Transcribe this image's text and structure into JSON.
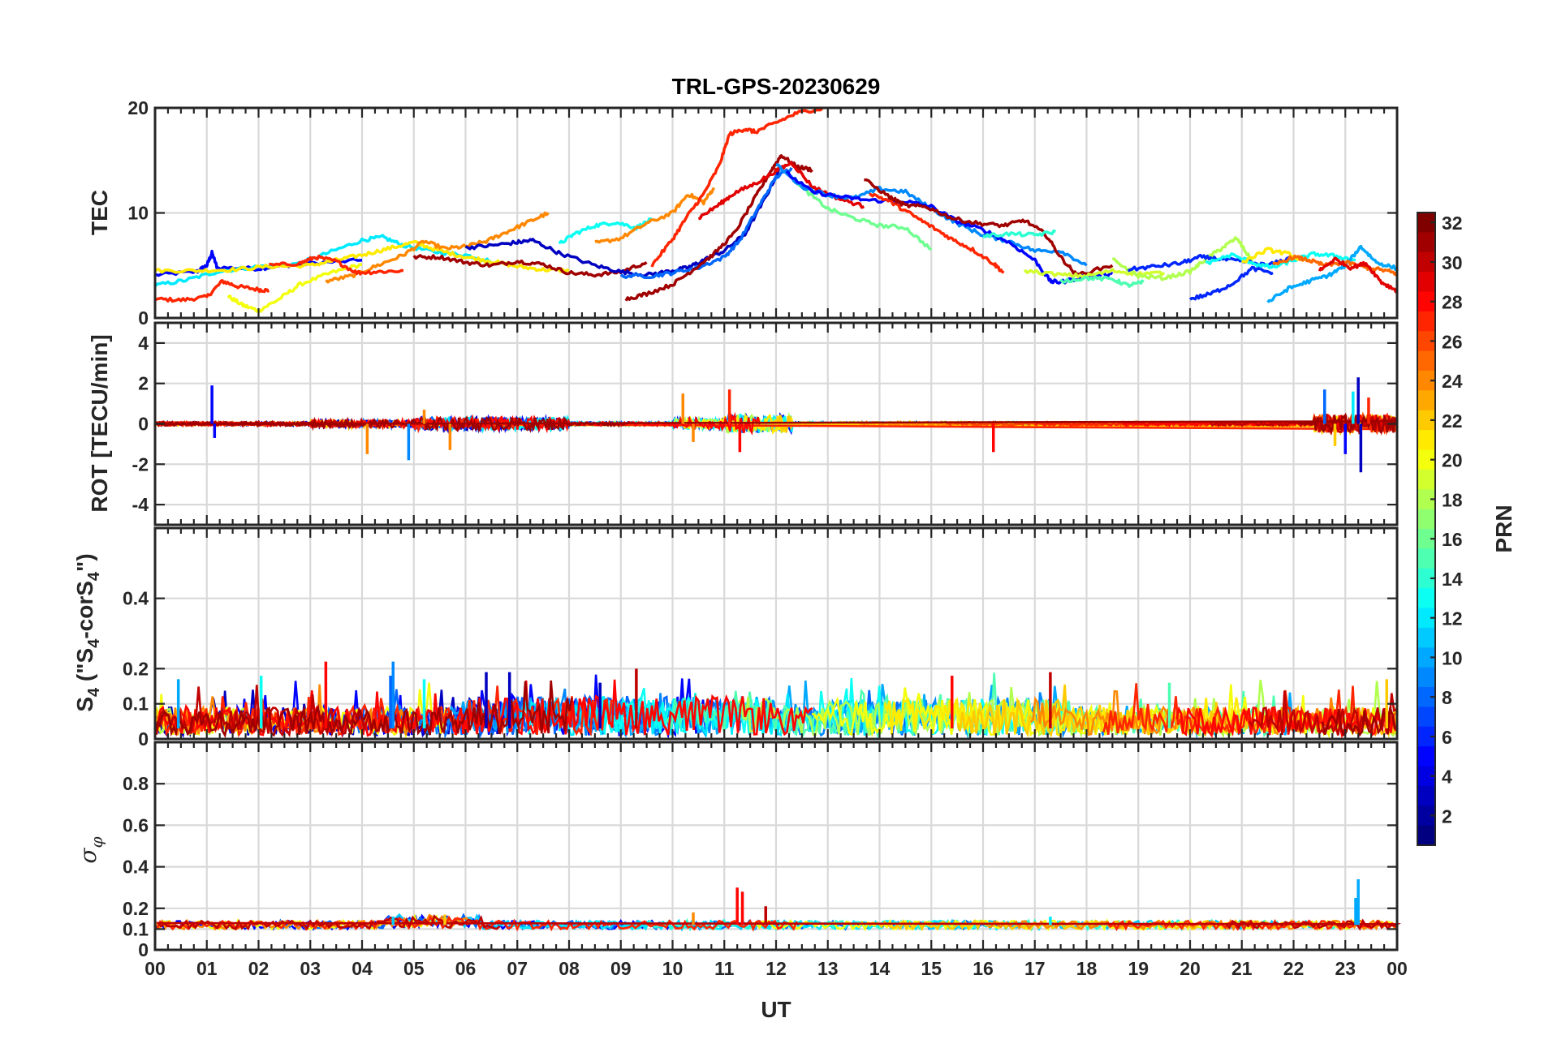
{
  "colors": {
    "axis": "#262626",
    "grid": "#d9d9d9",
    "background": "#ffffff"
  },
  "chart_data": [
    {
      "type": "line",
      "panel": "tec",
      "title": "TRL-GPS-20230629",
      "ylabel": "TEC",
      "ylim": [
        0,
        20
      ],
      "yticks": [
        "0",
        "10",
        "20"
      ],
      "xlim": [
        0,
        24
      ],
      "xtick_labels": [
        "00",
        "01",
        "02",
        "03",
        "04",
        "05",
        "06",
        "07",
        "08",
        "09",
        "10",
        "11",
        "12",
        "13",
        "14",
        "15",
        "16",
        "17",
        "18",
        "19",
        "20",
        "21",
        "22",
        "23",
        "00"
      ],
      "xlabel": "UT",
      "series": [
        {
          "prn": 5,
          "x": [
            0,
            0.8,
            1.0,
            1.1,
            1.2,
            2.0,
            2.5,
            3.0,
            4.0
          ],
          "y": [
            4.1,
            4.4,
            5.0,
            6.2,
            4.8,
            4.7,
            5.0,
            5.2,
            5.5
          ]
        },
        {
          "prn": 27,
          "x": [
            0,
            0.5,
            1.0,
            1.3,
            1.6,
            2.0,
            2.2
          ],
          "y": [
            1.8,
            1.7,
            2.0,
            3.5,
            3.0,
            2.7,
            2.6
          ]
        },
        {
          "prn": 20,
          "x": [
            1.4,
            1.7,
            2.0,
            2.4,
            2.8,
            3.4,
            4.0
          ],
          "y": [
            2.1,
            1.2,
            0.7,
            1.8,
            3.2,
            4.3,
            5.1
          ]
        },
        {
          "prn": 12,
          "x": [
            0,
            0.6,
            1.2,
            2.0,
            2.8,
            3.4,
            4.0,
            4.4,
            4.8,
            5.4,
            6.0,
            6.5
          ],
          "y": [
            3.1,
            3.6,
            4.4,
            4.9,
            5.2,
            6.3,
            7.4,
            7.7,
            6.9,
            6.3,
            6.0,
            5.4
          ]
        },
        {
          "prn": 21,
          "x": [
            0,
            0.8,
            1.5,
            2.2,
            3.0,
            3.5,
            4.0,
            4.5,
            5.0,
            5.5,
            6.0,
            6.5,
            7.0,
            7.5,
            8.0
          ],
          "y": [
            4.5,
            4.5,
            4.6,
            4.9,
            5.0,
            5.5,
            6.0,
            6.6,
            7.2,
            6.4,
            5.8,
            5.4,
            4.9,
            4.6,
            4.5
          ]
        },
        {
          "prn": 24,
          "x": [
            3.3,
            3.8,
            4.3,
            4.8,
            5.2,
            5.6,
            6.0,
            6.4,
            6.8,
            7.2,
            7.6
          ],
          "y": [
            3.5,
            4.0,
            5.0,
            6.0,
            7.3,
            6.6,
            6.8,
            7.3,
            8.2,
            9.1,
            10.0
          ]
        },
        {
          "prn": 27,
          "x": [
            2.2,
            2.8,
            3.1,
            3.5,
            3.9,
            4.3,
            4.8
          ],
          "y": [
            5.0,
            5.2,
            5.8,
            5.4,
            4.3,
            4.4,
            4.5
          ]
        },
        {
          "prn": 31,
          "x": [
            5.0,
            5.5,
            6.0,
            6.5,
            7.0,
            7.5,
            8.0,
            8.5,
            9.0,
            9.5
          ],
          "y": [
            5.8,
            5.8,
            5.3,
            5.0,
            5.4,
            5.1,
            4.3,
            4.1,
            4.4,
            5.3
          ]
        },
        {
          "prn": 13,
          "x": [
            7.8,
            8.1,
            8.5,
            8.9,
            9.3,
            9.6
          ],
          "y": [
            7.0,
            8.0,
            8.8,
            9.1,
            8.6,
            9.4
          ]
        },
        {
          "prn": 24,
          "x": [
            8.5,
            9.0,
            9.5,
            10.0,
            10.3,
            10.6,
            10.8
          ],
          "y": [
            7.1,
            7.6,
            9.0,
            10.0,
            11.8,
            11.0,
            12.4
          ]
        },
        {
          "prn": 3,
          "x": [
            6.0,
            6.5,
            7.0,
            7.3,
            7.8,
            8.5,
            9.0,
            9.5,
            10.0,
            10.3,
            10.6,
            11.0,
            11.4,
            11.8,
            12.1
          ],
          "y": [
            6.7,
            6.9,
            7.2,
            7.4,
            6.2,
            5.0,
            4.4,
            4.1,
            4.5,
            4.8,
            5.5,
            6.4,
            8.0,
            11.5,
            14.5
          ]
        },
        {
          "prn": 8,
          "x": [
            9.0,
            9.6,
            10.0,
            10.5,
            11.0,
            11.3,
            11.7,
            12.0,
            12.3
          ],
          "y": [
            4.0,
            4.0,
            4.3,
            4.8,
            5.8,
            7.4,
            10.9,
            13.4,
            14.3
          ]
        },
        {
          "prn": 31,
          "x": [
            9.1,
            9.5,
            10.0,
            10.4,
            10.8,
            11.2,
            11.6,
            11.9,
            12.1,
            12.4,
            12.7
          ],
          "y": [
            1.8,
            2.3,
            3.2,
            4.6,
            6.1,
            8.1,
            11.5,
            14.0,
            15.5,
            14.4,
            14.1
          ]
        },
        {
          "prn": 27,
          "x": [
            9.6,
            10.0,
            10.3,
            10.6,
            10.9,
            11.1,
            11.4,
            11.6,
            12.0,
            12.4,
            12.9
          ],
          "y": [
            5.0,
            7.5,
            9.8,
            11.8,
            14.5,
            17.5,
            18.0,
            17.7,
            18.6,
            19.5,
            20.0
          ]
        },
        {
          "prn": 29,
          "x": [
            10.5,
            10.9,
            11.2,
            11.6,
            12.0,
            12.3,
            12.7,
            13.2,
            13.7
          ],
          "y": [
            9.5,
            10.8,
            11.9,
            12.8,
            14.0,
            14.8,
            12.5,
            11.4,
            10.6
          ]
        },
        {
          "prn": 16,
          "x": [
            12.2,
            12.6,
            13.0,
            13.5,
            14.0,
            14.5,
            15.0
          ],
          "y": [
            14.0,
            12.0,
            10.4,
            9.5,
            8.8,
            8.6,
            6.5
          ]
        },
        {
          "prn": 9,
          "x": [
            12.0,
            12.5,
            13.0,
            13.5,
            14.0,
            14.5,
            15.0,
            15.5,
            16.0,
            16.5,
            17.0,
            17.5,
            18.0
          ],
          "y": [
            14.6,
            12.5,
            11.7,
            11.4,
            12.3,
            12.0,
            10.4,
            9.0,
            7.9,
            7.3,
            6.4,
            6.4,
            5.0
          ]
        },
        {
          "prn": 5,
          "x": [
            12.2,
            12.7,
            13.3,
            13.8,
            14.5,
            15.0,
            15.5,
            16.0,
            16.5,
            17.0,
            17.3,
            17.5,
            18.0,
            18.5
          ],
          "y": [
            13.8,
            12.0,
            11.5,
            11.2,
            11.1,
            10.6,
            9.2,
            8.4,
            7.2,
            5.5,
            3.5,
            3.4,
            4.0,
            4.2
          ]
        },
        {
          "prn": 27,
          "x": [
            13.8,
            14.2,
            14.6,
            15.0,
            15.4,
            15.8,
            16.2,
            16.4
          ],
          "y": [
            11.9,
            11.1,
            9.9,
            8.7,
            7.5,
            6.5,
            5.2,
            4.3
          ]
        },
        {
          "prn": 31,
          "x": [
            13.7,
            14.2,
            14.5,
            14.9,
            15.4,
            15.9,
            16.4,
            16.8,
            17.2,
            17.5,
            17.8,
            18.5
          ],
          "y": [
            13.2,
            11.5,
            10.7,
            10.6,
            9.5,
            9.0,
            8.8,
            9.3,
            8.0,
            5.8,
            4.1,
            5.0
          ]
        },
        {
          "prn": 14,
          "x": [
            16.0,
            16.5,
            17.0,
            17.4
          ],
          "y": [
            7.8,
            8.0,
            7.9,
            8.2
          ]
        },
        {
          "prn": 19,
          "x": [
            16.8,
            17.5,
            18.0,
            18.5,
            19.0,
            19.5
          ],
          "y": [
            4.5,
            4.1,
            4.0,
            4.5,
            4.2,
            4.3
          ]
        },
        {
          "prn": 15,
          "x": [
            17.5,
            18.0,
            18.5,
            18.8,
            19.1
          ],
          "y": [
            3.5,
            3.8,
            3.7,
            3.1,
            3.4
          ]
        },
        {
          "prn": 18,
          "x": [
            18.5,
            19.0,
            19.5,
            20.0,
            20.3,
            20.6,
            20.9,
            21.2
          ],
          "y": [
            5.6,
            4.0,
            3.8,
            4.4,
            5.6,
            6.6,
            7.6,
            5.4
          ]
        },
        {
          "prn": 6,
          "x": [
            18.8,
            19.3,
            19.8,
            20.2,
            20.6,
            21.0,
            21.5,
            22.0
          ],
          "y": [
            4.6,
            4.9,
            5.2,
            5.8,
            5.6,
            5.4,
            5.0,
            5.8
          ]
        },
        {
          "prn": 6,
          "x": [
            20.0,
            20.4,
            20.8,
            21.2,
            21.6
          ],
          "y": [
            1.8,
            2.3,
            3.2,
            4.7,
            4.3
          ]
        },
        {
          "prn": 13,
          "x": [
            20.3,
            20.8,
            21.3,
            21.6,
            22.0,
            22.4,
            22.8,
            23.2
          ],
          "y": [
            5.2,
            6.0,
            5.1,
            4.8,
            5.5,
            6.1,
            5.9,
            5.5
          ]
        },
        {
          "prn": 10,
          "x": [
            21.5,
            21.9,
            22.3,
            22.7,
            23.0,
            23.3,
            23.6,
            24.0
          ],
          "y": [
            1.5,
            2.8,
            3.5,
            4.1,
            5.0,
            6.8,
            5.3,
            4.7
          ]
        },
        {
          "prn": 21,
          "x": [
            21.0,
            21.5,
            21.9,
            22.2
          ],
          "y": [
            5.3,
            6.5,
            6.1,
            5.4
          ]
        },
        {
          "prn": 25,
          "x": [
            21.6,
            22.0,
            22.3,
            22.6,
            23.0,
            23.4,
            23.8,
            24.0
          ],
          "y": [
            5.0,
            5.8,
            5.5,
            5.0,
            5.3,
            4.8,
            4.5,
            4.2
          ]
        },
        {
          "prn": 29,
          "x": [
            22.5,
            22.8,
            23.1,
            23.4,
            23.7,
            24.0
          ],
          "y": [
            4.5,
            5.6,
            4.8,
            5.2,
            3.4,
            2.6
          ]
        }
      ]
    },
    {
      "type": "line",
      "panel": "rot",
      "ylabel": "ROT [TECU/min]",
      "ylim": [
        -5,
        5
      ],
      "yticks": [
        "-4",
        "-2",
        "0",
        "2",
        "4"
      ],
      "xlim": [
        0,
        24
      ],
      "spikes": [
        {
          "x": 1.1,
          "y": 1.9,
          "prn": 5
        },
        {
          "x": 1.15,
          "y": -0.7,
          "prn": 5
        },
        {
          "x": 4.1,
          "y": -1.5,
          "prn": 24
        },
        {
          "x": 4.9,
          "y": -1.8,
          "prn": 9
        },
        {
          "x": 5.7,
          "y": -1.3,
          "prn": 24
        },
        {
          "x": 5.2,
          "y": 0.7,
          "prn": 24
        },
        {
          "x": 10.2,
          "y": 1.5,
          "prn": 24
        },
        {
          "x": 10.4,
          "y": -0.9,
          "prn": 24
        },
        {
          "x": 11.1,
          "y": 1.7,
          "prn": 27
        },
        {
          "x": 11.3,
          "y": -1.4,
          "prn": 28
        },
        {
          "x": 16.2,
          "y": -1.4,
          "prn": 28
        },
        {
          "x": 22.6,
          "y": 1.7,
          "prn": 8
        },
        {
          "x": 22.8,
          "y": -1.1,
          "prn": 22
        },
        {
          "x": 23.0,
          "y": -1.5,
          "prn": 5
        },
        {
          "x": 23.15,
          "y": 1.6,
          "prn": 12
        },
        {
          "x": 23.25,
          "y": 2.3,
          "prn": 3
        },
        {
          "x": 23.3,
          "y": -2.4,
          "prn": 3
        },
        {
          "x": 23.45,
          "y": 1.3,
          "prn": 27
        }
      ]
    },
    {
      "type": "line",
      "panel": "s4",
      "ylabel_main": "S",
      "ylabel_sub1": "4",
      "ylabel_mid": " (\"S",
      "ylabel_sub2": "4",
      "ylabel_mid2": "-corS",
      "ylabel_sub3": "4",
      "ylabel_end": "\")",
      "ylim": [
        0,
        0.6
      ],
      "yticks": [
        "0",
        "0.1",
        "0.2",
        "0.4"
      ],
      "xlim": [
        0,
        24
      ],
      "peaks": [
        {
          "x": 0.45,
          "y": 0.17,
          "prn": 10
        },
        {
          "x": 2.05,
          "y": 0.18,
          "prn": 13
        },
        {
          "x": 3.3,
          "y": 0.22,
          "prn": 28
        },
        {
          "x": 4.6,
          "y": 0.22,
          "prn": 9
        },
        {
          "x": 4.55,
          "y": 0.18,
          "prn": 8
        },
        {
          "x": 5.2,
          "y": 0.17,
          "prn": 13
        },
        {
          "x": 6.4,
          "y": 0.19,
          "prn": 3
        },
        {
          "x": 6.85,
          "y": 0.19,
          "prn": 3
        },
        {
          "x": 9.3,
          "y": 0.2,
          "prn": 30
        },
        {
          "x": 8.6,
          "y": 0.16,
          "prn": 3
        },
        {
          "x": 15.4,
          "y": 0.18,
          "prn": 28
        },
        {
          "x": 17.3,
          "y": 0.19,
          "prn": 30
        },
        {
          "x": 19.6,
          "y": 0.16,
          "prn": 15
        },
        {
          "x": 23.8,
          "y": 0.17,
          "prn": 22
        }
      ]
    },
    {
      "type": "line",
      "panel": "sigma_phi",
      "ylabel": "σ",
      "ylabel_sub": "φ",
      "ylim": [
        0,
        1
      ],
      "yticks": [
        "0",
        "0.1",
        "0.2",
        "0.4",
        "0.6",
        "0.8"
      ],
      "xlim": [
        0,
        24
      ],
      "spikes": [
        {
          "x": 11.25,
          "y": 0.3,
          "prn": 28
        },
        {
          "x": 11.35,
          "y": 0.28,
          "prn": 28
        },
        {
          "x": 11.8,
          "y": 0.21,
          "prn": 30
        },
        {
          "x": 10.4,
          "y": 0.18,
          "prn": 24
        },
        {
          "x": 23.25,
          "y": 0.34,
          "prn": 10
        },
        {
          "x": 23.2,
          "y": 0.25,
          "prn": 10
        },
        {
          "x": 5.6,
          "y": 0.17,
          "prn": 22
        },
        {
          "x": 4.6,
          "y": 0.16,
          "prn": 11
        },
        {
          "x": 17.3,
          "y": 0.16,
          "prn": 12
        }
      ]
    },
    {
      "type": "colorbar",
      "label": "PRN",
      "range": [
        1,
        32
      ],
      "tick_labels": [
        "2",
        "4",
        "6",
        "8",
        "10",
        "12",
        "14",
        "16",
        "18",
        "20",
        "22",
        "24",
        "26",
        "28",
        "30",
        "32"
      ]
    }
  ]
}
